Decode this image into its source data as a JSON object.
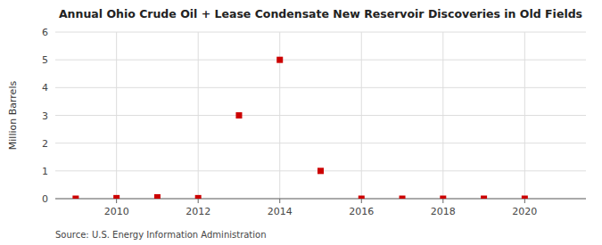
{
  "chart_data": {
    "type": "scatter",
    "title": "Annual Ohio Crude Oil + Lease Condensate New Reservoir Discoveries in Old Fields",
    "y_label": "Million Barrels",
    "annotations": [
      "Source: U.S. Energy Information Administration"
    ],
    "x": [
      2009,
      2010,
      2011,
      2012,
      2013,
      2014,
      2015,
      2016,
      2017,
      2018,
      2019,
      2020
    ],
    "values": [
      0.0,
      0.02,
      0.05,
      0.02,
      3.0,
      5.0,
      1.0,
      0.0,
      0.0,
      0.0,
      0.0,
      0.0
    ],
    "color": "#cc0000",
    "marker": "square",
    "xlim": [
      2008.5,
      2021.5
    ],
    "ylim": [
      0,
      6
    ],
    "xticks": [
      2010,
      2012,
      2014,
      2016,
      2018,
      2020
    ],
    "yticks": [
      0,
      1,
      2,
      3,
      4,
      5,
      6
    ],
    "grid": true
  }
}
